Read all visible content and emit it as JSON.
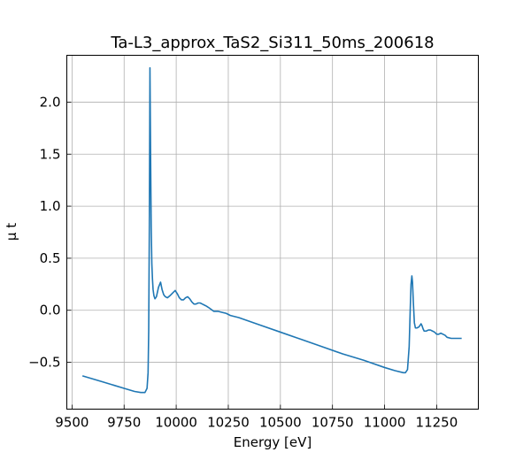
{
  "chart_data": {
    "type": "line",
    "title": "Ta-L3_approx_TaS2_Si311_50ms_200618",
    "xlabel": "Energy [eV]",
    "ylabel": "μ t",
    "xlim": [
      9475,
      11450
    ],
    "ylim": [
      -0.95,
      2.45
    ],
    "xticks": [
      9500,
      9750,
      10000,
      10250,
      10500,
      10750,
      11000,
      11250
    ],
    "yticks": [
      -0.5,
      0.0,
      0.5,
      1.0,
      1.5,
      2.0
    ],
    "xtick_labels": [
      "9500",
      "9750",
      "10000",
      "10250",
      "10500",
      "10750",
      "11000",
      "11250"
    ],
    "ytick_labels": [
      "−0.5",
      "0.0",
      "0.5",
      "1.0",
      "1.5",
      "2.0"
    ],
    "grid": true,
    "series": [
      {
        "color": "#1f77b4",
        "x": [
          9550,
          9600,
          9650,
          9700,
          9750,
          9800,
          9830,
          9850,
          9860,
          9865,
          9868,
          9871,
          9874,
          9877,
          9880,
          9883,
          9886,
          9889,
          9893,
          9898,
          9905,
          9915,
          9925,
          9932,
          9940,
          9948,
          9958,
          9970,
          9985,
          9995,
          10005,
          10015,
          10025,
          10035,
          10045,
          10055,
          10065,
          10075,
          10085,
          10095,
          10105,
          10115,
          10125,
          10135,
          10145,
          10160,
          10180,
          10200,
          10220,
          10240,
          10260,
          10300,
          10400,
          10500,
          10600,
          10700,
          10800,
          10900,
          11000,
          11050,
          11090,
          11100,
          11110,
          11118,
          11123,
          11127,
          11131,
          11134,
          11138,
          11143,
          11148,
          11155,
          11165,
          11175,
          11180,
          11185,
          11190,
          11200,
          11210,
          11220,
          11230,
          11240,
          11250,
          11260,
          11270,
          11280,
          11290,
          11300,
          11320,
          11340,
          11360,
          11370
        ],
        "y": [
          -0.63,
          -0.66,
          -0.69,
          -0.72,
          -0.75,
          -0.78,
          -0.79,
          -0.79,
          -0.75,
          -0.6,
          -0.2,
          0.8,
          2.33,
          1.5,
          0.8,
          0.45,
          0.3,
          0.2,
          0.14,
          0.11,
          0.13,
          0.22,
          0.27,
          0.2,
          0.15,
          0.13,
          0.12,
          0.14,
          0.17,
          0.19,
          0.16,
          0.12,
          0.1,
          0.1,
          0.12,
          0.13,
          0.11,
          0.08,
          0.06,
          0.06,
          0.07,
          0.07,
          0.06,
          0.05,
          0.04,
          0.02,
          -0.01,
          -0.01,
          -0.02,
          -0.03,
          -0.05,
          -0.07,
          -0.14,
          -0.21,
          -0.28,
          -0.35,
          -0.42,
          -0.48,
          -0.55,
          -0.58,
          -0.6,
          -0.6,
          -0.57,
          -0.35,
          0.0,
          0.25,
          0.33,
          0.27,
          0.08,
          -0.12,
          -0.17,
          -0.17,
          -0.16,
          -0.13,
          -0.15,
          -0.18,
          -0.2,
          -0.2,
          -0.19,
          -0.19,
          -0.2,
          -0.21,
          -0.23,
          -0.23,
          -0.22,
          -0.23,
          -0.24,
          -0.26,
          -0.27,
          -0.27,
          -0.27,
          -0.27
        ]
      }
    ]
  }
}
